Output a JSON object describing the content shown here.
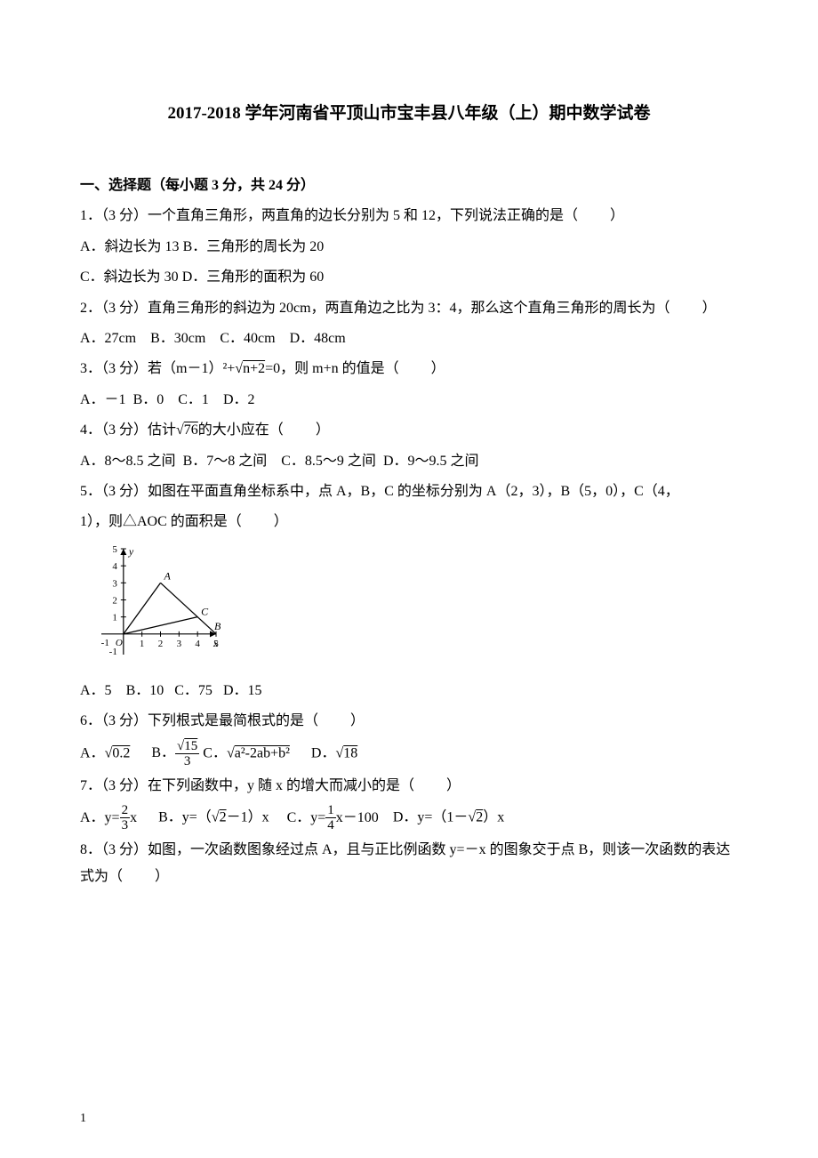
{
  "title": "2017-2018 学年河南省平顶山市宝丰县八年级（上）期中数学试卷",
  "section1_heading": "一、选择题（每小题 3 分，共 24 分）",
  "q1": {
    "stem": "1．（3 分）一个直角三角形，两直角的边长分别为 5 和 12，下列说法正确的是（",
    "optA": "A．斜边长为 13",
    "optB": "B．三角形的周长为 20",
    "optC": "C．斜边长为 30",
    "optD": "D．三角形的面积为 60"
  },
  "q2": {
    "stem": "2．（3 分）直角三角形的斜边为 20cm，两直角边之比为 3：4，那么这个直角三角形的周长为（",
    "optA": "A．27cm",
    "optB": "B．30cm",
    "optC": "C．40cm",
    "optD": "D．48cm"
  },
  "q3": {
    "stem_pre": "3．（3 分）若（m－1）²+",
    "sqrt_inner": "n+2",
    "stem_post": "=0，则 m+n 的值是（",
    "optA": "A．－1",
    "optB": "B．0",
    "optC": "C．1",
    "optD": "D．2"
  },
  "q4": {
    "stem_pre": "4．（3 分）估计",
    "sqrt_inner": "76",
    "stem_post": "的大小应在（",
    "optA": "A．8～8.5 之间",
    "optB": "B．7～8 之间",
    "optC": "C．8.5～9 之间",
    "optD": "D．9～9.5 之间"
  },
  "q5": {
    "stem1": "5．（3 分）如图在平面直角坐标系中，点 A，B，C 的坐标分别为 A（2，3），B（5，0），C（4，",
    "stem2": "1），则△AOC 的面积是（",
    "chart": {
      "width": 165,
      "height": 145,
      "axis_color": "#000000",
      "line_color": "#000000",
      "x_min": -1,
      "x_max": 5,
      "y_min": -1,
      "y_max": 5,
      "x_ticks": [
        1,
        2,
        3,
        4,
        5
      ],
      "y_ticks": [
        1,
        2,
        3,
        4,
        5
      ],
      "points": {
        "A": {
          "x": 2,
          "y": 3,
          "label": "A"
        },
        "B": {
          "x": 5,
          "y": 0,
          "label": "B"
        },
        "C": {
          "x": 4,
          "y": 1,
          "label": "C"
        }
      },
      "origin_label": "O",
      "neg1_label": "-1",
      "x_axis_label": "x",
      "y_axis_label": "y"
    },
    "optA": "A．5",
    "optB": "B．10",
    "optC": "C．75",
    "optD": "D．15"
  },
  "q6": {
    "stem": "6．（3 分）下列根式是最简根式的是（",
    "optA_pre": "A．",
    "optA_sqrt": "0.2",
    "optB_pre": "B．",
    "optB_num_sqrt": "15",
    "optB_den": "3",
    "optC_pre": "C．",
    "optC_sqrt": "a²-2ab+b²",
    "optD_pre": "D．",
    "optD_sqrt": "18"
  },
  "q7": {
    "stem": "7．（3 分）在下列函数中，y 随 x 的增大而减小的是（",
    "optA_pre": "A．y=",
    "optA_num": "2",
    "optA_den": "3",
    "optA_post": "x",
    "optB_pre": "B．y=（",
    "optB_sqrt": "2",
    "optB_post": "－1）x",
    "optC_pre": "C．y=",
    "optC_num": "1",
    "optC_den": "4",
    "optC_post": "x－100",
    "optD_pre": "D．y=（1－",
    "optD_sqrt": "2",
    "optD_post": "）x"
  },
  "q8": {
    "stem": "8．（3 分）如图，一次函数图象经过点 A，且与正比例函数 y=－x 的图象交于点 B，则该一次函数的表达式为（"
  },
  "footer": "1"
}
